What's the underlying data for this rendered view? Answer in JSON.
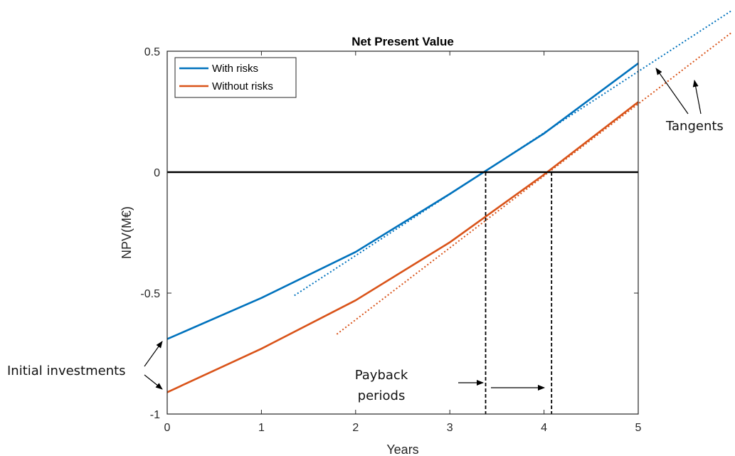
{
  "chart_data": {
    "type": "line",
    "title": "Net Present Value",
    "xlabel": "Years",
    "ylabel": "NPV(M€)",
    "xlim": [
      0,
      5
    ],
    "ylim": [
      -1,
      0.5
    ],
    "xticks": [
      "0",
      "1",
      "2",
      "3",
      "4",
      "5"
    ],
    "yticks": [
      "-1",
      "-0.5",
      "0",
      "0.5"
    ],
    "legend_position": "top-left",
    "grid": false,
    "series": [
      {
        "name": "With risks",
        "color": "#0072BD",
        "x": [
          0,
          1,
          2,
          3,
          4,
          5
        ],
        "y": [
          -0.69,
          -0.52,
          -0.33,
          -0.09,
          0.16,
          0.45
        ]
      },
      {
        "name": "Without risks",
        "color": "#D95319",
        "x": [
          0,
          1,
          2,
          3,
          4,
          5
        ],
        "y": [
          -0.91,
          -0.73,
          -0.53,
          -0.29,
          -0.01,
          0.29
        ]
      }
    ],
    "tangents": [
      {
        "color": "#0072BD",
        "from": [
          1.35,
          -0.51
        ],
        "to": [
          6.0,
          0.67
        ]
      },
      {
        "color": "#D95319",
        "from": [
          1.8,
          -0.67
        ],
        "to": [
          6.0,
          0.58
        ]
      }
    ],
    "payback_periods": [
      3.38,
      4.08
    ],
    "zero_line": 0,
    "annotations": {
      "initial_investments": "Initial investments",
      "payback_line1": "Payback",
      "payback_line2": "periods",
      "tangents": "Tangents"
    }
  }
}
